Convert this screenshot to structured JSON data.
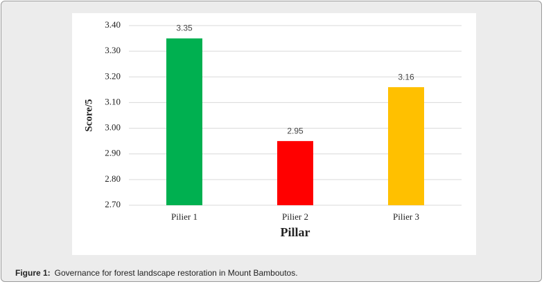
{
  "chart_data": {
    "type": "bar",
    "xlabel": "Pillar",
    "ylabel": "Score/5",
    "categories": [
      "Pilier 1",
      "Pilier 2",
      "Pilier 3"
    ],
    "values": [
      3.35,
      2.95,
      3.16
    ],
    "colors": [
      "#00b050",
      "#ff0000",
      "#ffc000"
    ],
    "ylim": [
      2.7,
      3.4
    ],
    "yticks": [
      {
        "value": 2.7,
        "label": "2.70"
      },
      {
        "value": 2.8,
        "label": "2.80"
      },
      {
        "value": 2.9,
        "label": "2.90"
      },
      {
        "value": 3.0,
        "label": "3.00"
      },
      {
        "value": 3.1,
        "label": "3.10"
      },
      {
        "value": 3.2,
        "label": "3.20"
      },
      {
        "value": 3.3,
        "label": "3.30"
      },
      {
        "value": 3.4,
        "label": "3.40"
      }
    ],
    "grid": true
  },
  "figure": {
    "label": "Figure 1:",
    "caption": "Governance for forest landscape restoration in Mount Bamboutos."
  }
}
